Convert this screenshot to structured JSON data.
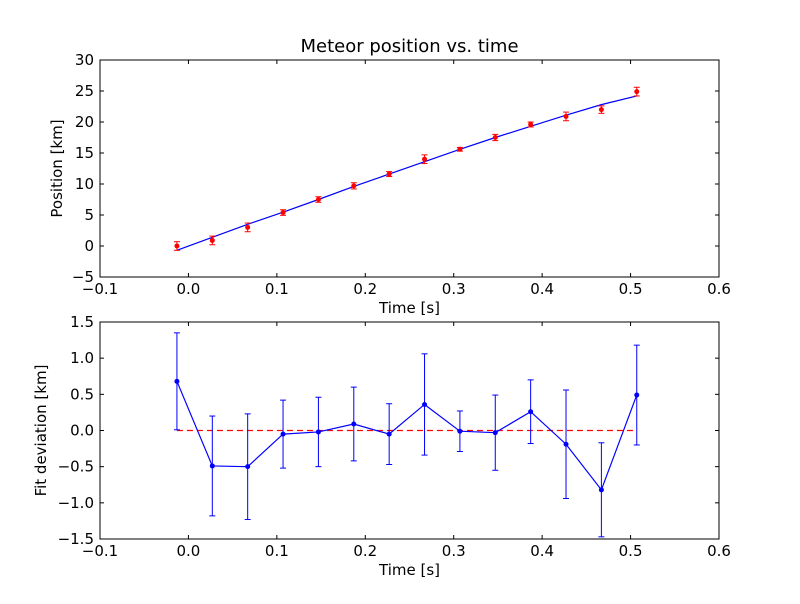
{
  "chart_data": [
    {
      "type": "scatter",
      "title": "Meteor position vs. time",
      "xlabel": "Time [s]",
      "ylabel": "Position [km]",
      "xlim": [
        -0.1,
        0.6
      ],
      "ylim": [
        -5,
        30
      ],
      "x_ticks": [
        -0.1,
        0.0,
        0.1,
        0.2,
        0.3,
        0.4,
        0.5,
        0.6
      ],
      "y_ticks": [
        -5,
        0,
        5,
        10,
        15,
        20,
        25,
        30
      ],
      "x_tick_labels": [
        "−0.1",
        "0.0",
        "0.1",
        "0.2",
        "0.3",
        "0.4",
        "0.5",
        "0.6"
      ],
      "y_tick_labels": [
        "−5",
        "0",
        "5",
        "10",
        "15",
        "20",
        "25",
        "30"
      ],
      "grid": false,
      "colors": {
        "points": "#ff0000",
        "fit": "#0000ff",
        "axes": "#000000"
      },
      "series": [
        {
          "kind": "points-with-errorbars",
          "x": [
            -0.013,
            0.027,
            0.067,
            0.107,
            0.147,
            0.187,
            0.227,
            0.267,
            0.307,
            0.347,
            0.387,
            0.427,
            0.467,
            0.507
          ],
          "y": [
            0.0,
            0.9,
            3.0,
            5.4,
            7.5,
            9.7,
            11.6,
            14.0,
            15.6,
            17.5,
            19.6,
            20.9,
            22.0,
            24.9
          ],
          "yerr": [
            0.7,
            0.7,
            0.7,
            0.45,
            0.45,
            0.5,
            0.4,
            0.7,
            0.3,
            0.5,
            0.4,
            0.7,
            0.6,
            0.7
          ]
        },
        {
          "kind": "fit-line",
          "x": [
            -0.013,
            0.027,
            0.067,
            0.107,
            0.147,
            0.187,
            0.227,
            0.267,
            0.307,
            0.347,
            0.387,
            0.427,
            0.467,
            0.507
          ],
          "y": [
            -0.7,
            1.4,
            3.5,
            5.45,
            7.5,
            9.6,
            11.6,
            13.6,
            15.6,
            17.5,
            19.3,
            21.1,
            22.8,
            24.2
          ]
        }
      ]
    },
    {
      "type": "line",
      "xlabel": "Time [s]",
      "ylabel": "Fit deviation [km]",
      "xlim": [
        -0.1,
        0.6
      ],
      "ylim": [
        -1.5,
        1.5
      ],
      "x_ticks": [
        -0.1,
        0.0,
        0.1,
        0.2,
        0.3,
        0.4,
        0.5,
        0.6
      ],
      "y_ticks": [
        -1.5,
        -1.0,
        -0.5,
        0.0,
        0.5,
        1.0,
        1.5
      ],
      "x_tick_labels": [
        "−0.1",
        "0.0",
        "0.1",
        "0.2",
        "0.3",
        "0.4",
        "0.5",
        "0.6"
      ],
      "y_tick_labels": [
        "−1.5",
        "−1.0",
        "−0.5",
        "0.0",
        "0.5",
        "1.0",
        "1.5"
      ],
      "grid": false,
      "colors": {
        "series": "#0000ff",
        "zero_line": "#ff0000",
        "axes": "#000000"
      },
      "zero_line": {
        "y": 0.0,
        "x_range": [
          -0.013,
          0.507
        ],
        "style": "dashed"
      },
      "series": [
        {
          "kind": "line-with-errorbars",
          "x": [
            -0.013,
            0.027,
            0.067,
            0.107,
            0.147,
            0.187,
            0.227,
            0.267,
            0.307,
            0.347,
            0.387,
            0.427,
            0.467,
            0.507
          ],
          "y": [
            0.68,
            -0.49,
            -0.5,
            -0.05,
            -0.02,
            0.09,
            -0.05,
            0.36,
            -0.01,
            -0.03,
            0.26,
            -0.19,
            -0.82,
            0.49
          ],
          "yerr": [
            0.67,
            0.69,
            0.73,
            0.47,
            0.48,
            0.51,
            0.42,
            0.7,
            0.28,
            0.52,
            0.44,
            0.75,
            0.65,
            0.69
          ]
        }
      ]
    }
  ]
}
